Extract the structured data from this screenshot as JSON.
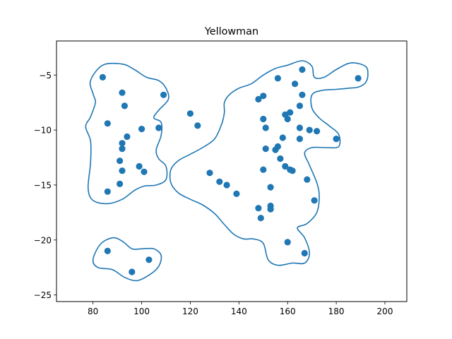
{
  "chart_data": {
    "type": "scatter",
    "title": "Yellowman",
    "xlabel": "",
    "ylabel": "",
    "xlim": [
      65,
      209
    ],
    "ylim": [
      -25.6,
      -1.9
    ],
    "xticks": [
      80,
      100,
      120,
      140,
      160,
      180,
      200
    ],
    "yticks": [
      -5,
      -10,
      -15,
      -20,
      -25
    ],
    "xtick_labels": [
      "80",
      "100",
      "120",
      "140",
      "160",
      "180",
      "200"
    ],
    "ytick_labels": [
      "−5",
      "−10",
      "−15",
      "−20",
      "−25"
    ],
    "grid": false,
    "point_color": "#1f77b4",
    "outline_color": "#1f77b4",
    "points": [
      {
        "x": 84,
        "y": -5.2
      },
      {
        "x": 92,
        "y": -6.6
      },
      {
        "x": 93,
        "y": -7.8
      },
      {
        "x": 109,
        "y": -6.8
      },
      {
        "x": 86,
        "y": -9.4
      },
      {
        "x": 100,
        "y": -9.9
      },
      {
        "x": 107,
        "y": -9.8
      },
      {
        "x": 94,
        "y": -10.6
      },
      {
        "x": 92,
        "y": -11.2
      },
      {
        "x": 92,
        "y": -11.7
      },
      {
        "x": 91,
        "y": -12.8
      },
      {
        "x": 99,
        "y": -13.3
      },
      {
        "x": 92,
        "y": -13.7
      },
      {
        "x": 101,
        "y": -13.8
      },
      {
        "x": 91,
        "y": -14.9
      },
      {
        "x": 86,
        "y": -15.6
      },
      {
        "x": 120,
        "y": -8.5
      },
      {
        "x": 123,
        "y": -9.6
      },
      {
        "x": 128,
        "y": -13.9
      },
      {
        "x": 132,
        "y": -14.7
      },
      {
        "x": 135,
        "y": -15.0
      },
      {
        "x": 139,
        "y": -15.8
      },
      {
        "x": 148,
        "y": -7.2
      },
      {
        "x": 150,
        "y": -6.9
      },
      {
        "x": 156,
        "y": -5.3
      },
      {
        "x": 163,
        "y": -5.8
      },
      {
        "x": 166,
        "y": -4.5
      },
      {
        "x": 166,
        "y": -6.8
      },
      {
        "x": 165,
        "y": -7.8
      },
      {
        "x": 159,
        "y": -8.6
      },
      {
        "x": 161,
        "y": -8.4
      },
      {
        "x": 160,
        "y": -9.0
      },
      {
        "x": 150,
        "y": -9.0
      },
      {
        "x": 151,
        "y": -9.8
      },
      {
        "x": 165,
        "y": -9.8
      },
      {
        "x": 169,
        "y": -10.0
      },
      {
        "x": 172,
        "y": -10.1
      },
      {
        "x": 180,
        "y": -10.8
      },
      {
        "x": 158,
        "y": -10.7
      },
      {
        "x": 165,
        "y": -10.8
      },
      {
        "x": 156,
        "y": -11.5
      },
      {
        "x": 151,
        "y": -11.7
      },
      {
        "x": 155,
        "y": -11.8
      },
      {
        "x": 157,
        "y": -12.6
      },
      {
        "x": 159,
        "y": -13.3
      },
      {
        "x": 150,
        "y": -13.6
      },
      {
        "x": 161,
        "y": -13.6
      },
      {
        "x": 162,
        "y": -13.7
      },
      {
        "x": 168,
        "y": -14.5
      },
      {
        "x": 153,
        "y": -15.2
      },
      {
        "x": 171,
        "y": -16.4
      },
      {
        "x": 148,
        "y": -17.1
      },
      {
        "x": 153,
        "y": -16.9
      },
      {
        "x": 153,
        "y": -17.2
      },
      {
        "x": 149,
        "y": -18.0
      },
      {
        "x": 160,
        "y": -20.2
      },
      {
        "x": 167,
        "y": -21.2
      },
      {
        "x": 189,
        "y": -5.3
      },
      {
        "x": 86,
        "y": -21.0
      },
      {
        "x": 96,
        "y": -22.9
      },
      {
        "x": 103,
        "y": -21.8
      }
    ],
    "outlines": [
      [
        [
          79,
          -5.5
        ],
        [
          84,
          -4.1
        ],
        [
          92,
          -4.0
        ],
        [
          97,
          -4.5
        ],
        [
          102,
          -5.2
        ],
        [
          107,
          -5.5
        ],
        [
          110,
          -6.2
        ],
        [
          111,
          -7.2
        ],
        [
          107,
          -8.2
        ],
        [
          105,
          -8.9
        ],
        [
          108,
          -9.3
        ],
        [
          108,
          -10.5
        ],
        [
          106,
          -11.8
        ],
        [
          107,
          -12.6
        ],
        [
          110,
          -13.3
        ],
        [
          110,
          -14.5
        ],
        [
          106,
          -15.0
        ],
        [
          101,
          -15.1
        ],
        [
          97,
          -15.5
        ],
        [
          92,
          -16.3
        ],
        [
          86,
          -16.7
        ],
        [
          80,
          -16.4
        ],
        [
          78,
          -15.3
        ],
        [
          79,
          -13.0
        ],
        [
          79,
          -11.0
        ],
        [
          77,
          -9.7
        ],
        [
          79,
          -8.8
        ],
        [
          81,
          -7.5
        ],
        [
          80,
          -6.7
        ],
        [
          79,
          -5.5
        ]
      ],
      [
        [
          133,
          -9.4
        ],
        [
          130,
          -10.8
        ],
        [
          125,
          -11.6
        ],
        [
          120,
          -12.2
        ],
        [
          115,
          -12.8
        ],
        [
          112,
          -13.6
        ],
        [
          112,
          -14.8
        ],
        [
          115,
          -15.7
        ],
        [
          120,
          -16.3
        ],
        [
          125,
          -16.8
        ],
        [
          130,
          -17.6
        ],
        [
          134,
          -18.6
        ],
        [
          138,
          -19.5
        ],
        [
          142,
          -19.9
        ],
        [
          146,
          -19.9
        ],
        [
          150,
          -20.3
        ],
        [
          152,
          -21.8
        ],
        [
          156,
          -22.3
        ],
        [
          162,
          -22.1
        ],
        [
          167,
          -22.1
        ],
        [
          169,
          -21.2
        ],
        [
          167,
          -19.8
        ],
        [
          164,
          -18.9
        ],
        [
          168,
          -18.5
        ],
        [
          172,
          -17.5
        ],
        [
          173,
          -16.0
        ],
        [
          172,
          -14.8
        ],
        [
          169,
          -13.2
        ],
        [
          167,
          -12.1
        ],
        [
          170,
          -11.6
        ],
        [
          176,
          -11.6
        ],
        [
          181,
          -11.5
        ],
        [
          181,
          -10.4
        ],
        [
          177,
          -9.6
        ],
        [
          173,
          -8.9
        ],
        [
          170,
          -8.0
        ],
        [
          170,
          -6.8
        ],
        [
          174,
          -6.4
        ],
        [
          180,
          -6.3
        ],
        [
          185,
          -6.2
        ],
        [
          189,
          -6.1
        ],
        [
          192,
          -5.7
        ],
        [
          193,
          -5.0
        ],
        [
          192,
          -4.2
        ],
        [
          186,
          -3.9
        ],
        [
          180,
          -4.5
        ],
        [
          175,
          -5.2
        ],
        [
          171,
          -5.2
        ],
        [
          170,
          -4.2
        ],
        [
          166,
          -3.7
        ],
        [
          160,
          -4.1
        ],
        [
          155,
          -4.4
        ],
        [
          150,
          -5.0
        ],
        [
          145,
          -5.8
        ],
        [
          140,
          -6.2
        ],
        [
          136,
          -6.8
        ],
        [
          134,
          -7.5
        ],
        [
          134,
          -8.4
        ],
        [
          133,
          -9.4
        ]
      ],
      [
        [
          80,
          -21.8
        ],
        [
          83,
          -20.4
        ],
        [
          88,
          -19.8
        ],
        [
          92,
          -20.1
        ],
        [
          96,
          -20.8
        ],
        [
          100,
          -20.8
        ],
        [
          105,
          -20.8
        ],
        [
          108,
          -21.4
        ],
        [
          107,
          -22.4
        ],
        [
          103,
          -23.2
        ],
        [
          98,
          -23.7
        ],
        [
          93,
          -23.4
        ],
        [
          88,
          -22.7
        ],
        [
          82,
          -22.5
        ],
        [
          80,
          -21.8
        ]
      ]
    ]
  }
}
